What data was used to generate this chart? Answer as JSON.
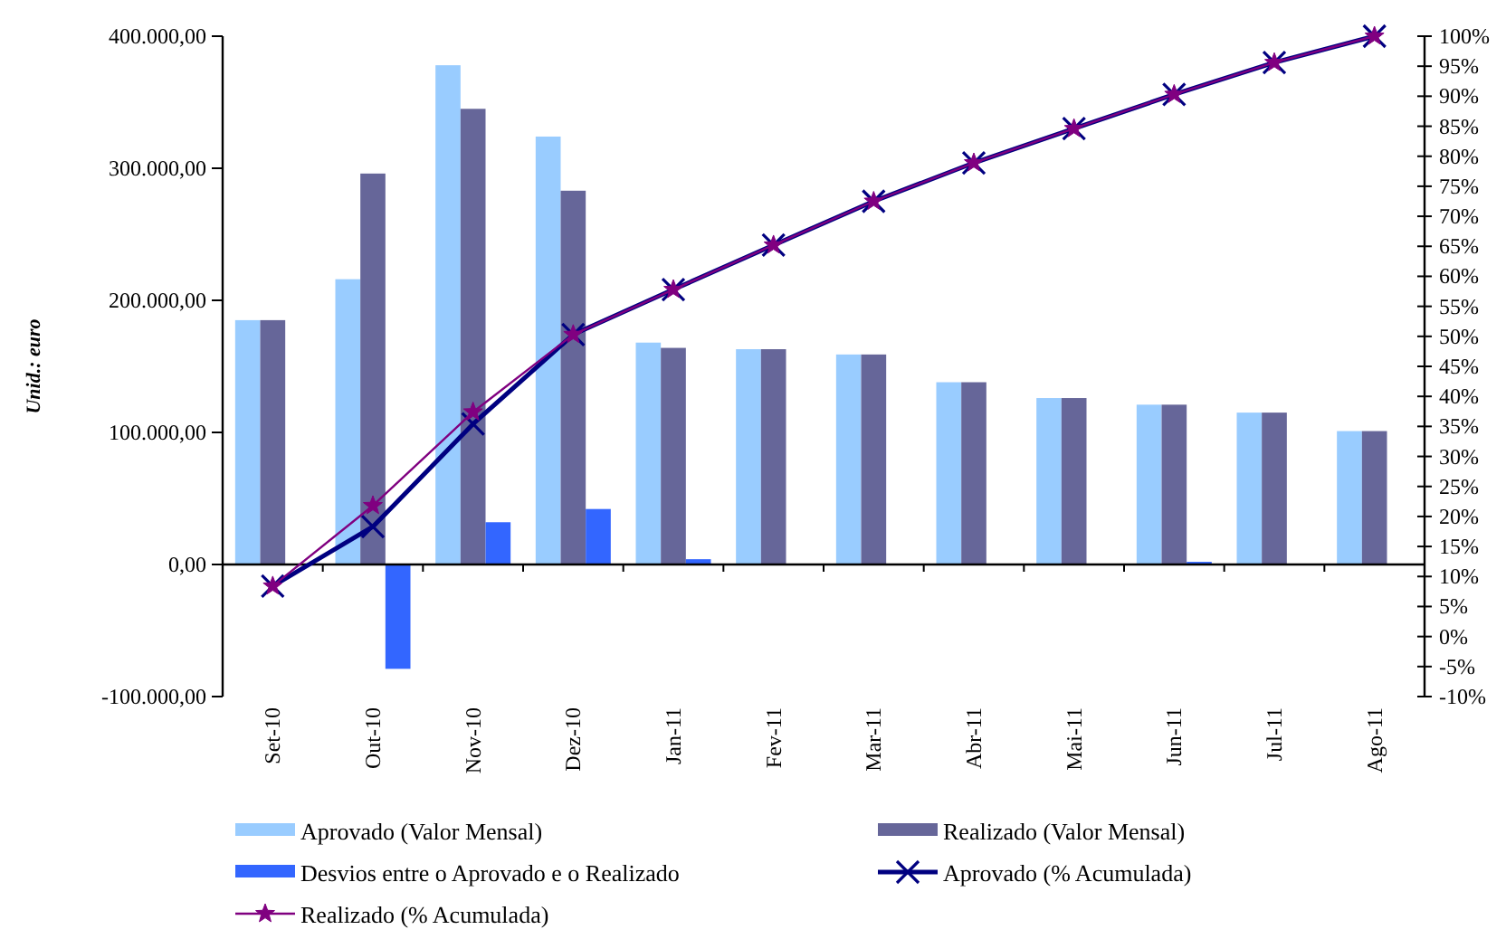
{
  "chart_data": {
    "type": "bar",
    "ylabel": "Unid.: euro",
    "categories": [
      "Set-10",
      "Out-10",
      "Nov-10",
      "Dez-10",
      "Jan-11",
      "Fev-11",
      "Mar-11",
      "Abr-11",
      "Mai-11",
      "Jun-11",
      "Jul-11",
      "Ago-11"
    ],
    "series": [
      {
        "name": "Aprovado (Valor Mensal)",
        "color": "#99ccff",
        "values": [
          185000,
          216000,
          378000,
          324000,
          168000,
          163000,
          159000,
          138000,
          126000,
          121000,
          115000,
          101000
        ]
      },
      {
        "name": "Realizado (Valor Mensal)",
        "color": "#666699",
        "values": [
          185000,
          296000,
          345000,
          283000,
          164000,
          163000,
          159000,
          138000,
          126000,
          121000,
          115000,
          101000
        ]
      },
      {
        "name": "Desvios entre o Aprovado e o Realizado",
        "color": "#3366ff",
        "values": [
          0,
          -79000,
          32000,
          42000,
          4000,
          0,
          0,
          0,
          0,
          2000,
          0,
          0
        ]
      },
      {
        "name": "Aprovado (% Acumulada)",
        "type": "line",
        "axis": "y2",
        "marker": "cross",
        "color": "#000080",
        "values": [
          8.4,
          18.3,
          35.4,
          50.3,
          57.8,
          65.2,
          72.5,
          78.9,
          84.6,
          90.3,
          95.6,
          100
        ]
      },
      {
        "name": "Realizado (% Acumulada)",
        "type": "line",
        "axis": "y2",
        "marker": "star",
        "color": "#800080",
        "values": [
          8.4,
          21.8,
          37.4,
          50.3,
          57.8,
          65.2,
          72.5,
          78.9,
          84.6,
          90.3,
          95.6,
          100
        ]
      }
    ],
    "ylim": [
      -100000,
      400000
    ],
    "yticks": [
      {
        "value": -100000,
        "label": "-100.000,00"
      },
      {
        "value": 0,
        "label": "0,00"
      },
      {
        "value": 100000,
        "label": "100.000,00"
      },
      {
        "value": 200000,
        "label": "200.000,00"
      },
      {
        "value": 300000,
        "label": "300.000,00"
      },
      {
        "value": 400000,
        "label": "400.000,00"
      }
    ],
    "y2lim": [
      -10,
      100
    ],
    "y2ticks": [
      {
        "value": -10,
        "label": "-10%"
      },
      {
        "value": -5,
        "label": "-5%"
      },
      {
        "value": 0,
        "label": "0%"
      },
      {
        "value": 5,
        "label": "5%"
      },
      {
        "value": 10,
        "label": "10%"
      },
      {
        "value": 15,
        "label": "15%"
      },
      {
        "value": 20,
        "label": "20%"
      },
      {
        "value": 25,
        "label": "25%"
      },
      {
        "value": 30,
        "label": "30%"
      },
      {
        "value": 35,
        "label": "35%"
      },
      {
        "value": 40,
        "label": "40%"
      },
      {
        "value": 45,
        "label": "45%"
      },
      {
        "value": 50,
        "label": "50%"
      },
      {
        "value": 55,
        "label": "55%"
      },
      {
        "value": 60,
        "label": "60%"
      },
      {
        "value": 65,
        "label": "65%"
      },
      {
        "value": 70,
        "label": "70%"
      },
      {
        "value": 75,
        "label": "75%"
      },
      {
        "value": 80,
        "label": "80%"
      },
      {
        "value": 85,
        "label": "85%"
      },
      {
        "value": 90,
        "label": "90%"
      },
      {
        "value": 95,
        "label": "95%"
      },
      {
        "value": 100,
        "label": "100%"
      }
    ],
    "legend": "bottom"
  }
}
